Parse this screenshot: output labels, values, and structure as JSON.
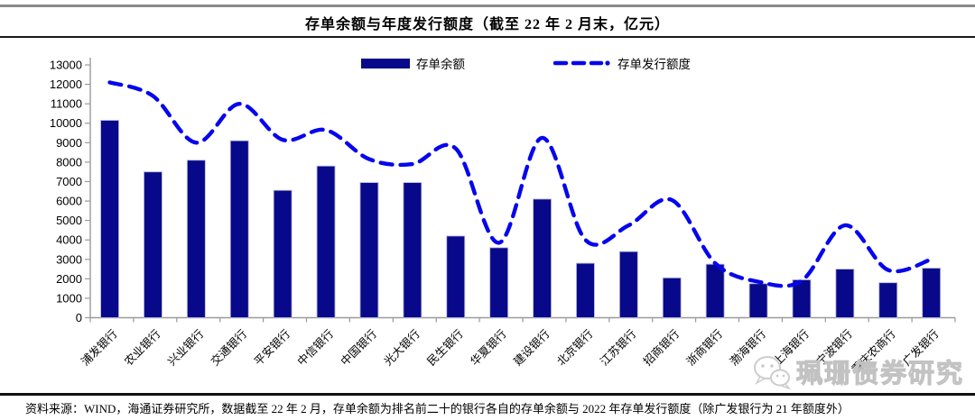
{
  "title": "存单余额与年度发行额度（截至 22 年 2 月末，亿元）",
  "legend": {
    "items": [
      {
        "label": "存单余额",
        "marker": "bar-swatch"
      },
      {
        "label": "存单发行额度",
        "marker": "dashed-line-swatch"
      }
    ]
  },
  "chart_data": {
    "type": "bar",
    "title": "存单余额与年度发行额度（截至 22 年 2 月末，亿元）",
    "categories": [
      "浦发银行",
      "农业银行",
      "兴业银行",
      "交通银行",
      "平安银行",
      "中信银行",
      "中国银行",
      "光大银行",
      "民生银行",
      "华夏银行",
      "建设银行",
      "北京银行",
      "江苏银行",
      "招商银行",
      "浙商银行",
      "渤海银行",
      "上海银行",
      "宁波银行",
      "重庆农商行",
      "广发银行"
    ],
    "series": [
      {
        "name": "存单余额",
        "type": "bar",
        "values": [
          10150,
          7500,
          8100,
          9100,
          6550,
          7800,
          6950,
          6950,
          4200,
          3600,
          6100,
          2800,
          3400,
          2050,
          2750,
          1750,
          1950,
          2500,
          1800,
          2550
        ]
      },
      {
        "name": "存单发行额度",
        "type": "line",
        "style": "dashed-smooth",
        "values": [
          12100,
          11400,
          9000,
          11000,
          9150,
          9650,
          8150,
          7900,
          8700,
          3850,
          9250,
          4000,
          4750,
          6050,
          2800,
          1850,
          1900,
          4750,
          2450,
          3000
        ]
      }
    ],
    "xlabel": "",
    "ylabel": "",
    "ylim": [
      0,
      13000
    ],
    "ytick_step": 1000,
    "grid": false,
    "legend_position": "top-center"
  },
  "watermark": {
    "text": "珮珊债券研究",
    "icon": "wechat-icon"
  },
  "source_note": "资料来源：WIND，海通证券研究所，数据截至 22 年 2 月，存单余额为排名前二十的银行各自的存单余额与 2022 年存单发行额度（除广发银行为 21 年额度外）",
  "colors": {
    "bar": "#08088A",
    "bar_border": "#b9b9dd",
    "line": "#0505EE",
    "axis": "#9a9a9a",
    "text": "#000000",
    "watermark": "#dedede",
    "top_rule": "#8a8a8a",
    "divider": "#111111"
  }
}
